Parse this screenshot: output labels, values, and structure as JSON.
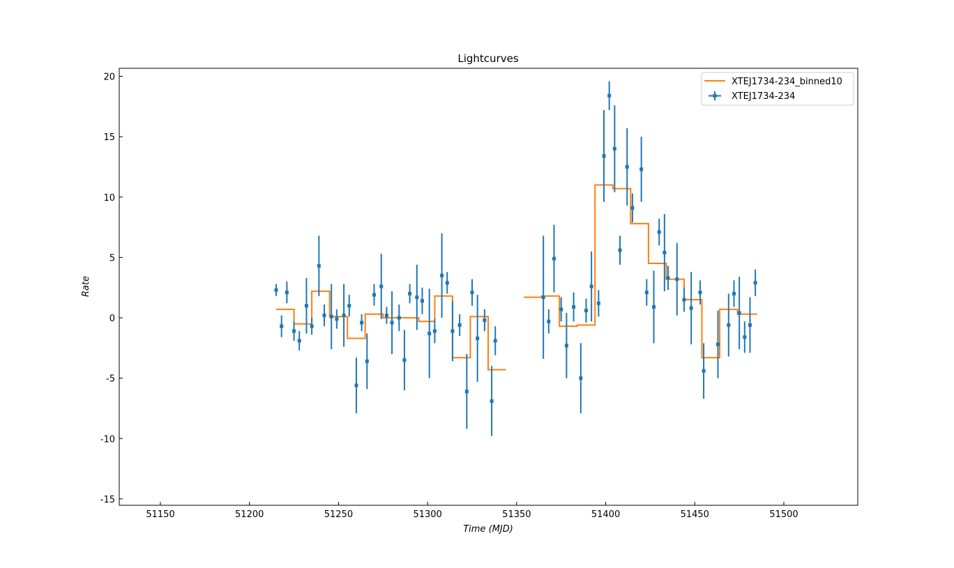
{
  "chart_data": {
    "type": "scatter",
    "title": "Lightcurves",
    "xlabel": "Time (MJD)",
    "ylabel": "Rate",
    "xlim": [
      51130,
      5140
    ],
    "ylim": [
      -15.5,
      20.6
    ],
    "xticks": [
      51150,
      51200,
      51250,
      51300,
      51350,
      51400,
      51450,
      51500
    ],
    "yticks": [
      -15,
      -10,
      -5,
      0,
      5,
      10,
      15,
      20
    ],
    "legend_position": "top-right",
    "colors": {
      "points": "#1f77b4",
      "binned": "#ff7f0e"
    },
    "series": [
      {
        "name": "XTEJ1734-234",
        "kind": "errorbar",
        "points": [
          {
            "x": 51215.0,
            "y": 2.3,
            "err": 0.5
          },
          {
            "x": 51218.0,
            "y": -0.7,
            "err": 0.9
          },
          {
            "x": 51221.0,
            "y": 2.1,
            "err": 0.9
          },
          {
            "x": 51225.0,
            "y": -1.1,
            "err": 0.8
          },
          {
            "x": 51228.0,
            "y": -1.9,
            "err": 0.8
          },
          {
            "x": 51232.0,
            "y": 1.0,
            "err": 2.3
          },
          {
            "x": 51235.0,
            "y": -0.7,
            "err": 0.7
          },
          {
            "x": 51239.0,
            "y": 4.3,
            "err": 2.5
          },
          {
            "x": 51242.0,
            "y": 0.2,
            "err": 0.9
          },
          {
            "x": 51246.0,
            "y": 0.1,
            "err": 2.7
          },
          {
            "x": 51249.0,
            "y": -0.1,
            "err": 0.8
          },
          {
            "x": 51253.0,
            "y": 0.2,
            "err": 2.6
          },
          {
            "x": 51256.0,
            "y": 1.0,
            "err": 0.9
          },
          {
            "x": 51260.0,
            "y": -5.6,
            "err": 2.3
          },
          {
            "x": 51263.0,
            "y": -0.4,
            "err": 0.7
          },
          {
            "x": 51266.0,
            "y": -3.6,
            "err": 2.3
          },
          {
            "x": 51270.0,
            "y": 1.9,
            "err": 0.9
          },
          {
            "x": 51274.0,
            "y": 2.6,
            "err": 2.7
          },
          {
            "x": 51277.0,
            "y": 0.2,
            "err": 0.7
          },
          {
            "x": 51280.0,
            "y": -0.4,
            "err": 2.6
          },
          {
            "x": 51284.0,
            "y": 0.0,
            "err": 1.1
          },
          {
            "x": 51287.0,
            "y": -3.5,
            "err": 2.5
          },
          {
            "x": 51290.0,
            "y": 2.0,
            "err": 0.8
          },
          {
            "x": 51294.0,
            "y": 1.7,
            "err": 2.7
          },
          {
            "x": 51297.0,
            "y": 1.4,
            "err": 1.1
          },
          {
            "x": 51301.0,
            "y": -1.3,
            "err": 3.7
          },
          {
            "x": 51304.0,
            "y": -1.1,
            "err": 1.0
          },
          {
            "x": 51308.0,
            "y": 3.5,
            "err": 3.5
          },
          {
            "x": 51311.0,
            "y": 2.9,
            "err": 0.9
          },
          {
            "x": 51314.0,
            "y": -1.1,
            "err": 2.5
          },
          {
            "x": 51318.0,
            "y": -0.6,
            "err": 0.9
          },
          {
            "x": 51322.0,
            "y": -6.1,
            "err": 3.1
          },
          {
            "x": 51325.0,
            "y": 2.1,
            "err": 1.1
          },
          {
            "x": 51328.0,
            "y": -1.7,
            "err": 3.6
          },
          {
            "x": 51332.0,
            "y": -0.2,
            "err": 0.9
          },
          {
            "x": 51336.0,
            "y": -6.9,
            "err": 2.9
          },
          {
            "x": 51338.0,
            "y": -1.9,
            "err": 1.2
          },
          {
            "x": 51365.0,
            "y": 1.7,
            "err": 5.1
          },
          {
            "x": 51368.0,
            "y": -0.3,
            "err": 1.0
          },
          {
            "x": 51371.0,
            "y": 4.9,
            "err": 2.8
          },
          {
            "x": 51375.0,
            "y": 0.7,
            "err": 1.0
          },
          {
            "x": 51378.0,
            "y": -2.3,
            "err": 2.7
          },
          {
            "x": 51382.0,
            "y": 0.9,
            "err": 1.2
          },
          {
            "x": 51386.0,
            "y": -5.0,
            "err": 2.9
          },
          {
            "x": 51389.0,
            "y": 0.6,
            "err": 1.0
          },
          {
            "x": 51392.0,
            "y": 2.6,
            "err": 2.9
          },
          {
            "x": 51396.0,
            "y": 1.2,
            "err": 1.1
          },
          {
            "x": 51399.0,
            "y": 13.4,
            "err": 3.8
          },
          {
            "x": 51402.0,
            "y": 18.4,
            "err": 1.2
          },
          {
            "x": 51405.0,
            "y": 14.0,
            "err": 3.6
          },
          {
            "x": 51408.0,
            "y": 5.6,
            "err": 1.2
          },
          {
            "x": 51412.0,
            "y": 12.5,
            "err": 3.2
          },
          {
            "x": 51415.0,
            "y": 9.1,
            "err": 1.2
          },
          {
            "x": 51420.0,
            "y": 12.3,
            "err": 2.7
          },
          {
            "x": 51423.0,
            "y": 2.1,
            "err": 1.1
          },
          {
            "x": 51427.0,
            "y": 0.9,
            "err": 3.0
          },
          {
            "x": 51430.0,
            "y": 7.1,
            "err": 1.1
          },
          {
            "x": 51433.0,
            "y": 5.4,
            "err": 3.2
          },
          {
            "x": 51435.0,
            "y": 3.3,
            "err": 1.0
          },
          {
            "x": 51440.0,
            "y": 3.2,
            "err": 3.0
          },
          {
            "x": 51444.0,
            "y": 1.5,
            "err": 1.0
          },
          {
            "x": 51448.0,
            "y": 0.8,
            "err": 3.0
          },
          {
            "x": 51453.0,
            "y": 2.1,
            "err": 1.0
          },
          {
            "x": 51455.0,
            "y": -4.4,
            "err": 2.3
          },
          {
            "x": 51463.0,
            "y": -2.2,
            "err": 2.8
          },
          {
            "x": 51469.0,
            "y": -0.6,
            "err": 2.6
          },
          {
            "x": 51472.0,
            "y": 2.0,
            "err": 1.1
          },
          {
            "x": 51475.0,
            "y": 0.4,
            "err": 3.0
          },
          {
            "x": 51478.0,
            "y": -1.6,
            "err": 1.3
          },
          {
            "x": 51481.0,
            "y": -0.6,
            "err": 2.3
          },
          {
            "x": 51484.0,
            "y": 2.9,
            "err": 1.1
          }
        ]
      },
      {
        "name": "XTEJ1734-234_binned10",
        "kind": "step",
        "segments": [
          {
            "points": [
              [
                51215,
                0.7
              ],
              [
                51225,
                0.7
              ],
              [
                51225,
                -0.5
              ],
              [
                51235,
                -0.5
              ],
              [
                51235,
                2.2
              ],
              [
                51245,
                2.2
              ],
              [
                51245,
                0.1
              ],
              [
                51255,
                0.1
              ],
              [
                51255,
                -1.7
              ],
              [
                51265,
                -1.7
              ],
              [
                51265,
                0.3
              ],
              [
                51275,
                0.3
              ],
              [
                51275,
                0.0
              ],
              [
                51285,
                0.0
              ],
              [
                51295,
                0.0
              ],
              [
                51295,
                -0.3
              ],
              [
                51304,
                -0.3
              ],
              [
                51304,
                1.8
              ],
              [
                51314,
                1.8
              ],
              [
                51314,
                -3.3
              ],
              [
                51324,
                -3.3
              ],
              [
                51324,
                0.1
              ],
              [
                51334,
                0.1
              ],
              [
                51334,
                -4.3
              ],
              [
                51344,
                -4.3
              ]
            ]
          },
          {
            "points": [
              [
                51354,
                1.7
              ],
              [
                51364,
                1.7
              ],
              [
                51364,
                1.8
              ],
              [
                51374,
                1.8
              ],
              [
                51374,
                -0.7
              ],
              [
                51384,
                -0.7
              ],
              [
                51384,
                -0.6
              ],
              [
                51394,
                -0.6
              ],
              [
                51394,
                11.0
              ],
              [
                51404,
                11.0
              ],
              [
                51404,
                10.7
              ],
              [
                51414,
                10.7
              ],
              [
                51414,
                7.8
              ],
              [
                51424,
                7.8
              ],
              [
                51424,
                4.5
              ],
              [
                51434,
                4.5
              ],
              [
                51434,
                3.2
              ],
              [
                51444,
                3.2
              ],
              [
                51444,
                1.5
              ],
              [
                51454,
                1.5
              ],
              [
                51454,
                -3.3
              ],
              [
                51464,
                -3.3
              ],
              [
                51464,
                0.7
              ],
              [
                51474,
                0.7
              ],
              [
                51474,
                0.3
              ],
              [
                51485,
                0.3
              ]
            ]
          }
        ]
      }
    ]
  }
}
